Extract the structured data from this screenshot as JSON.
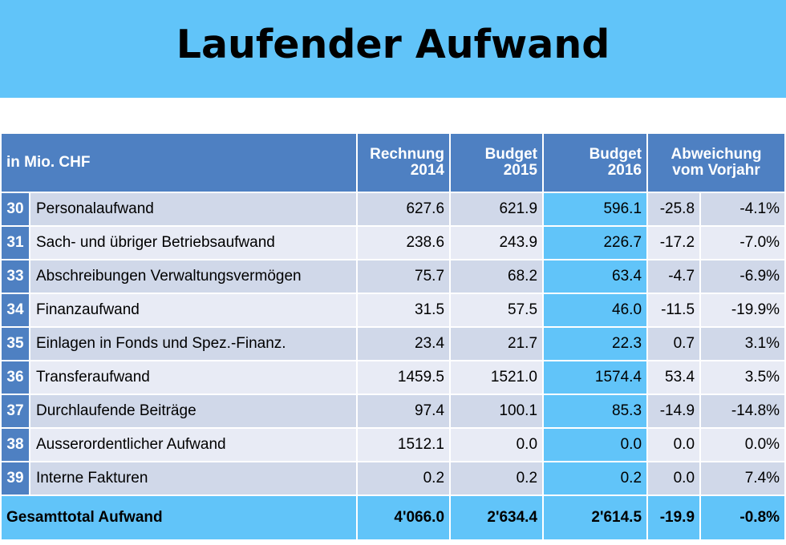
{
  "title": "Laufender Aufwand",
  "table": {
    "unit_header": "in Mio. CHF",
    "col_rechnung_line1": "Rechnung",
    "col_rechnung_line2": "2014",
    "col_budget15_line1": "Budget",
    "col_budget15_line2": "2015",
    "col_budget16_line1": "Budget",
    "col_budget16_line2": "2016",
    "col_abweichung_line1": "Abweichung",
    "col_abweichung_line2": "vom Vorjahr",
    "rows": [
      {
        "code": "30",
        "label": "Personalaufwand",
        "r2014": "627.6",
        "b2015": "621.9",
        "b2016": "596.1",
        "abs": "-25.8",
        "pct": "-4.1%"
      },
      {
        "code": "31",
        "label": "Sach- und übriger Betriebsaufwand",
        "r2014": "238.6",
        "b2015": "243.9",
        "b2016": "226.7",
        "abs": "-17.2",
        "pct": "-7.0%"
      },
      {
        "code": "33",
        "label": "Abschreibungen Verwaltungsvermögen",
        "r2014": "75.7",
        "b2015": "68.2",
        "b2016": "63.4",
        "abs": "-4.7",
        "pct": "-6.9%"
      },
      {
        "code": "34",
        "label": "Finanzaufwand",
        "r2014": "31.5",
        "b2015": "57.5",
        "b2016": "46.0",
        "abs": "-11.5",
        "pct": "-19.9%"
      },
      {
        "code": "35",
        "label": "Einlagen in Fonds und Spez.-Finanz.",
        "r2014": "23.4",
        "b2015": "21.7",
        "b2016": "22.3",
        "abs": "0.7",
        "pct": "3.1%"
      },
      {
        "code": "36",
        "label": "Transferaufwand",
        "r2014": "1459.5",
        "b2015": "1521.0",
        "b2016": "1574.4",
        "abs": "53.4",
        "pct": "3.5%"
      },
      {
        "code": "37",
        "label": "Durchlaufende Beiträge",
        "r2014": "97.4",
        "b2015": "100.1",
        "b2016": "85.3",
        "abs": "-14.9",
        "pct": "-14.8%"
      },
      {
        "code": "38",
        "label": "Ausserordentlicher Aufwand",
        "r2014": "1512.1",
        "b2015": "0.0",
        "b2016": "0.0",
        "abs": "0.0",
        "pct": "0.0%"
      },
      {
        "code": "39",
        "label": "Interne Fakturen",
        "r2014": "0.2",
        "b2015": "0.2",
        "b2016": "0.2",
        "abs": "0.0",
        "pct": "7.4%"
      }
    ],
    "total": {
      "label": "Gesamttotal Aufwand",
      "r2014": "4'066.0",
      "b2015": "2'634.4",
      "b2016": "2'614.5",
      "abs": "-19.9",
      "pct": "-0.8%"
    }
  },
  "colors": {
    "header_blue": "#4e80c2",
    "light_blue": "#61c4f9",
    "row_dark": "#d0d8e9",
    "row_light": "#e8ebf5"
  }
}
